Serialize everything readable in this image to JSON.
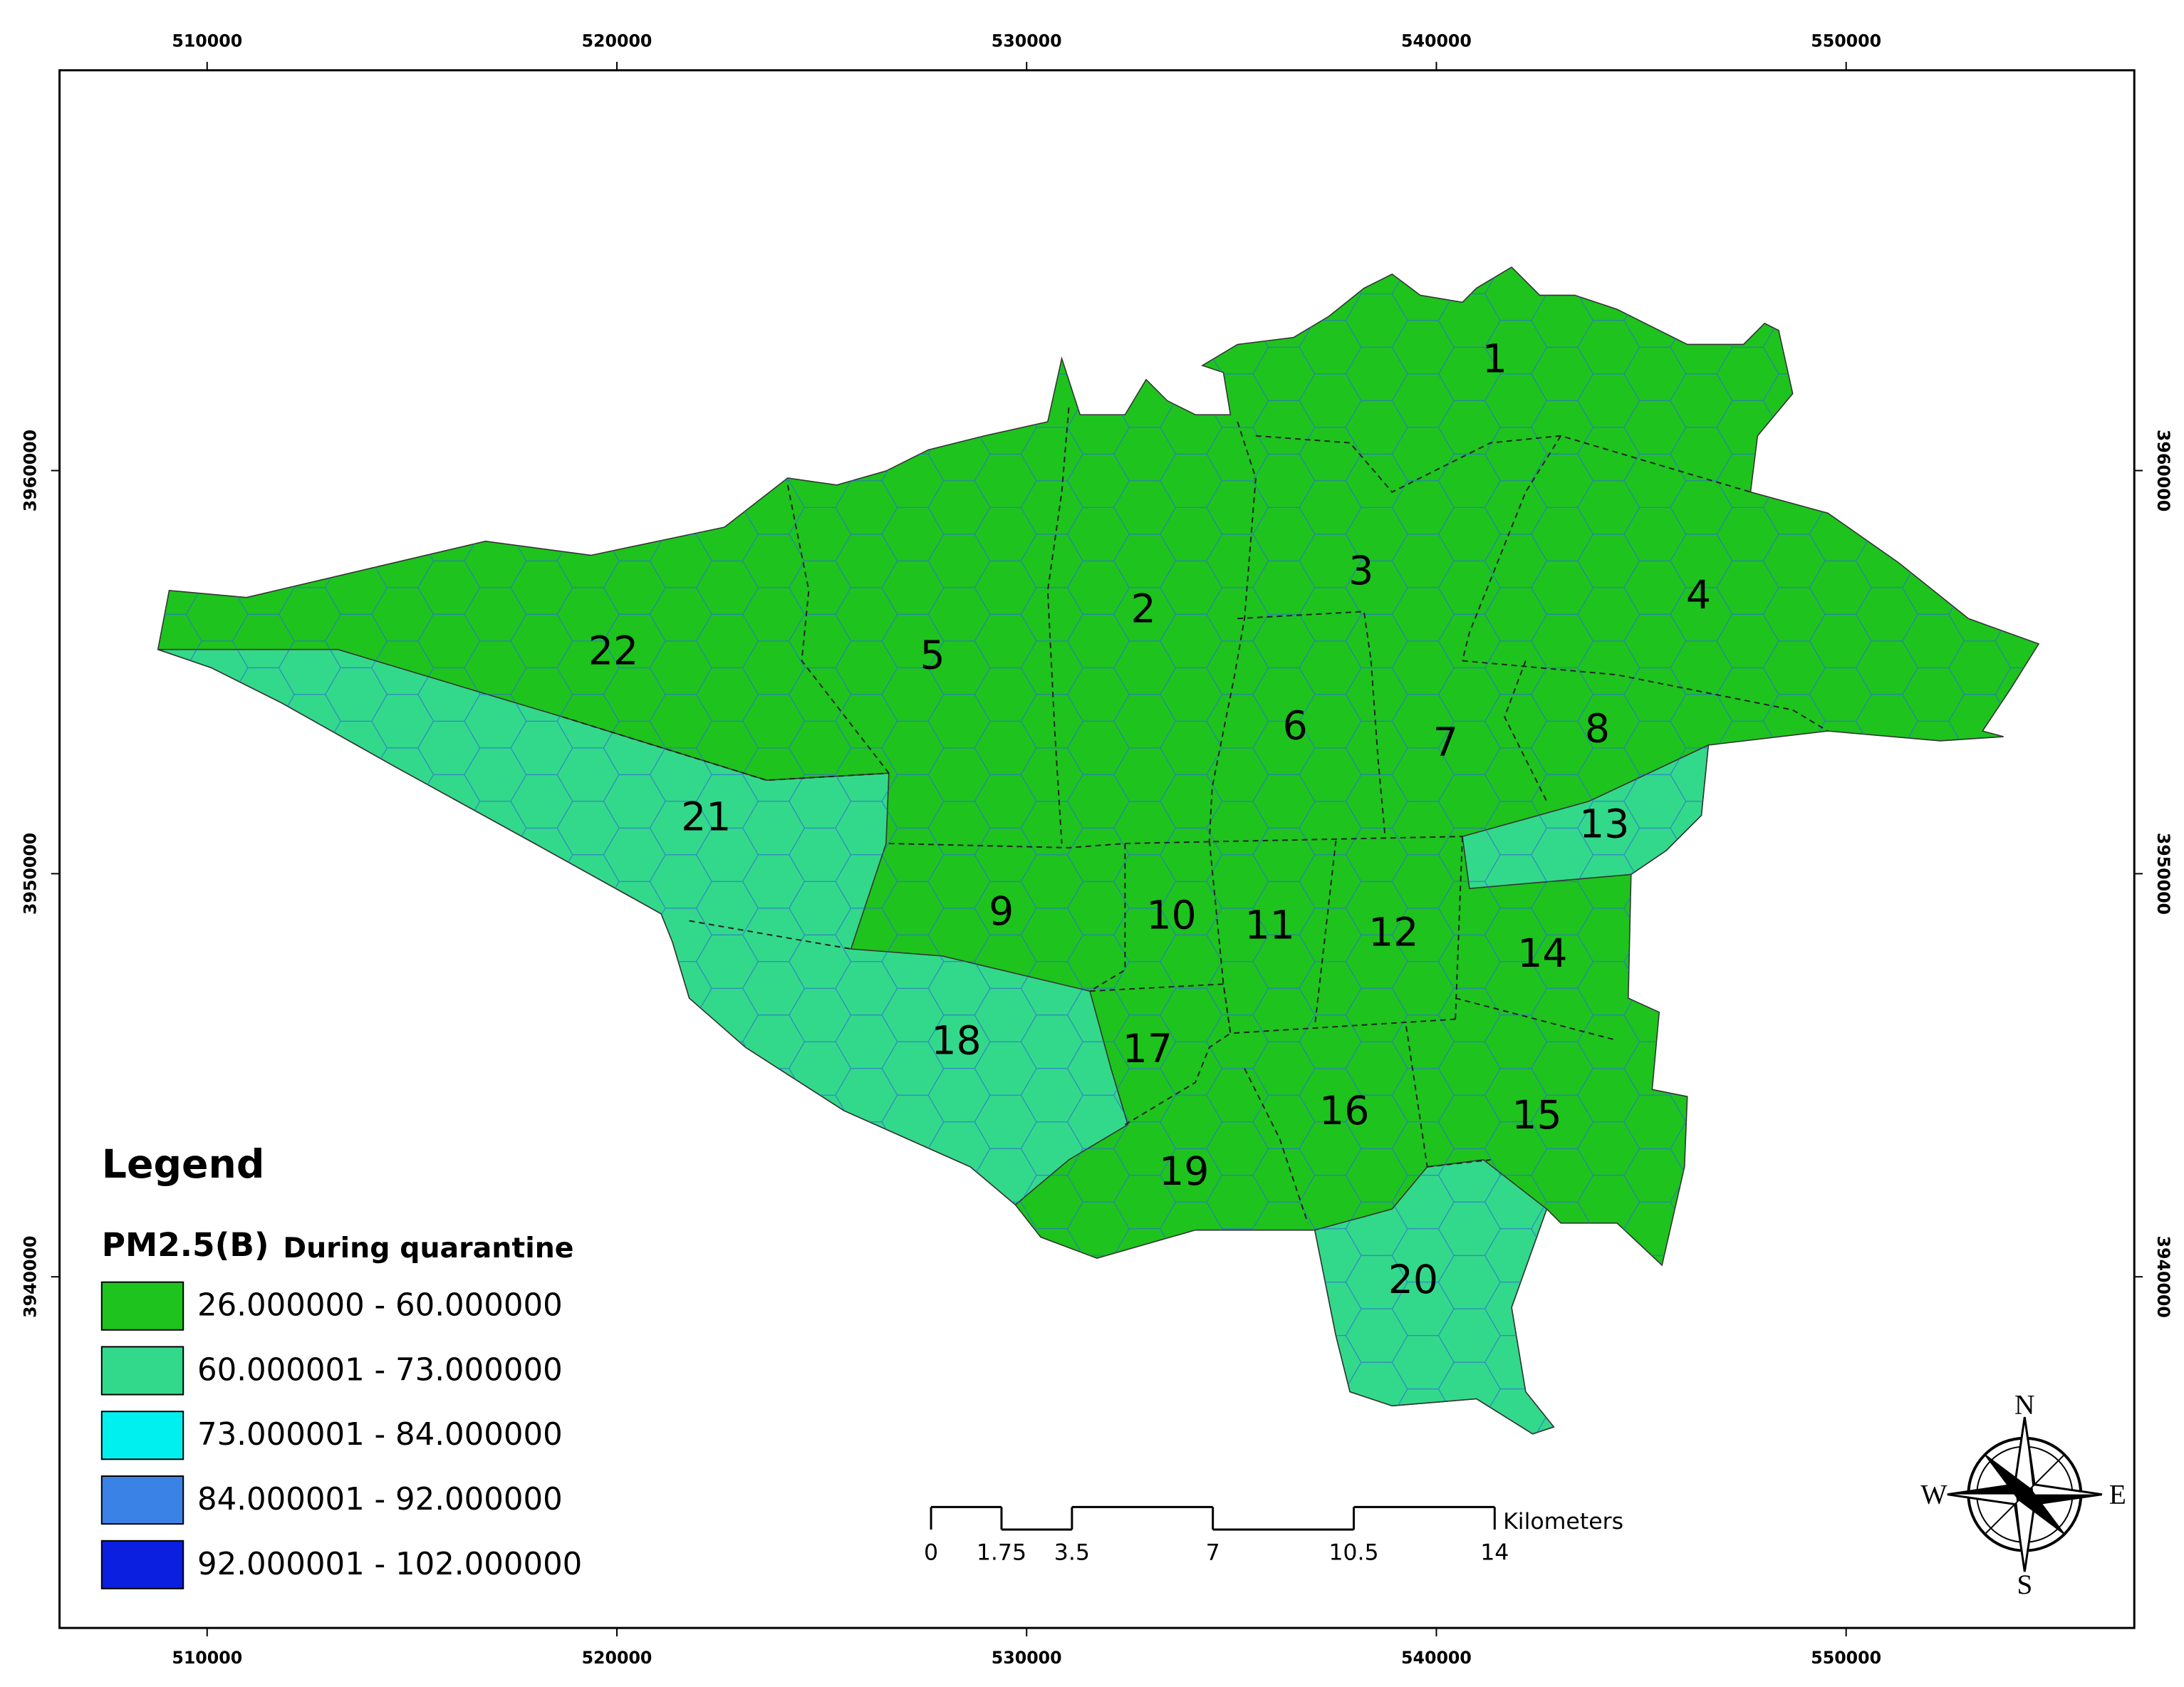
{
  "map": {
    "xlim": [
      506398,
      557033
    ],
    "ylim": [
      3931289,
      3969930
    ],
    "xticks": [
      510000,
      520000,
      530000,
      540000,
      550000
    ],
    "yticks": [
      3940000,
      3950000,
      3960000
    ]
  },
  "districts": [
    "1",
    "2",
    "3",
    "4",
    "5",
    "6",
    "7",
    "8",
    "9",
    "10",
    "11",
    "12",
    "13",
    "14",
    "15",
    "16",
    "17",
    "18",
    "19",
    "20",
    "21",
    "22"
  ],
  "legend": {
    "title": "Legend",
    "field": "PM2.5(B)",
    "subtitle": "During quarantine",
    "items": [
      {
        "label": "26.000000 - 60.000000",
        "color": "#1ec31e"
      },
      {
        "label": "60.000001 - 73.000000",
        "color": "#33d98a"
      },
      {
        "label": "73.000001 - 84.000000",
        "color": "#00f0f0"
      },
      {
        "label": "84.000001 - 92.000000",
        "color": "#3a82e6"
      },
      {
        "label": "92.000001 - 102.000000",
        "color": "#0a1fe0"
      }
    ]
  },
  "scale_bar": {
    "unit": "Kilometers",
    "ticks": [
      0,
      1.75,
      3.5,
      7,
      10.5,
      14
    ]
  },
  "compass": {
    "n": "N",
    "e": "E",
    "s": "S",
    "w": "W"
  }
}
